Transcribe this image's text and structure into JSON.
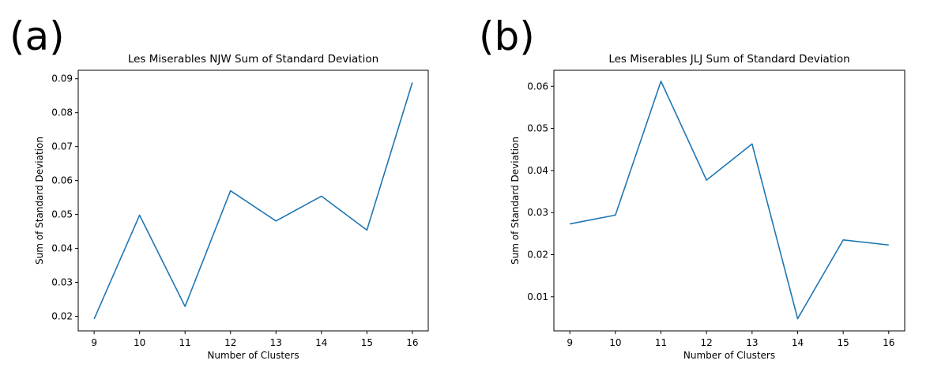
{
  "chart_data": [
    {
      "panel_label": "(a)",
      "type": "line",
      "title": "Les Miserables NJW Sum of Standard Deviation",
      "xlabel": "Number of Clusters",
      "ylabel": "Sum of Standard Deviation",
      "x": [
        9,
        10,
        11,
        12,
        13,
        14,
        15,
        16
      ],
      "xticks": [
        "9",
        "10",
        "11",
        "12",
        "13",
        "14",
        "15",
        "16"
      ],
      "xlim": [
        8.65,
        16.35
      ],
      "ylim": [
        0.0157,
        0.0925
      ],
      "yticks": [
        "0.02",
        "0.03",
        "0.04",
        "0.05",
        "0.06",
        "0.07",
        "0.08",
        "0.09"
      ],
      "grid": false,
      "series": [
        {
          "color": "#1f77b4",
          "values": [
            0.0192,
            0.0498,
            0.0229,
            0.057,
            0.0481,
            0.0554,
            0.0454,
            0.0889
          ]
        }
      ]
    },
    {
      "panel_label": "(b)",
      "type": "line",
      "title": "Les Miserables JLJ Sum of Standard Deviation",
      "xlabel": "Number of Clusters",
      "ylabel": "Sum of Standard Deviation",
      "x": [
        9,
        10,
        11,
        12,
        13,
        14,
        15,
        16
      ],
      "xticks": [
        "9",
        "10",
        "11",
        "12",
        "13",
        "14",
        "15",
        "16"
      ],
      "xlim": [
        8.65,
        16.35
      ],
      "ylim": [
        0.0019,
        0.0638
      ],
      "yticks": [
        "0.01",
        "0.02",
        "0.03",
        "0.04",
        "0.05",
        "0.06"
      ],
      "grid": false,
      "series": [
        {
          "color": "#1f77b4",
          "values": [
            0.0273,
            0.0294,
            0.0612,
            0.0377,
            0.0463,
            0.0048,
            0.0235,
            0.0223
          ]
        }
      ]
    }
  ]
}
